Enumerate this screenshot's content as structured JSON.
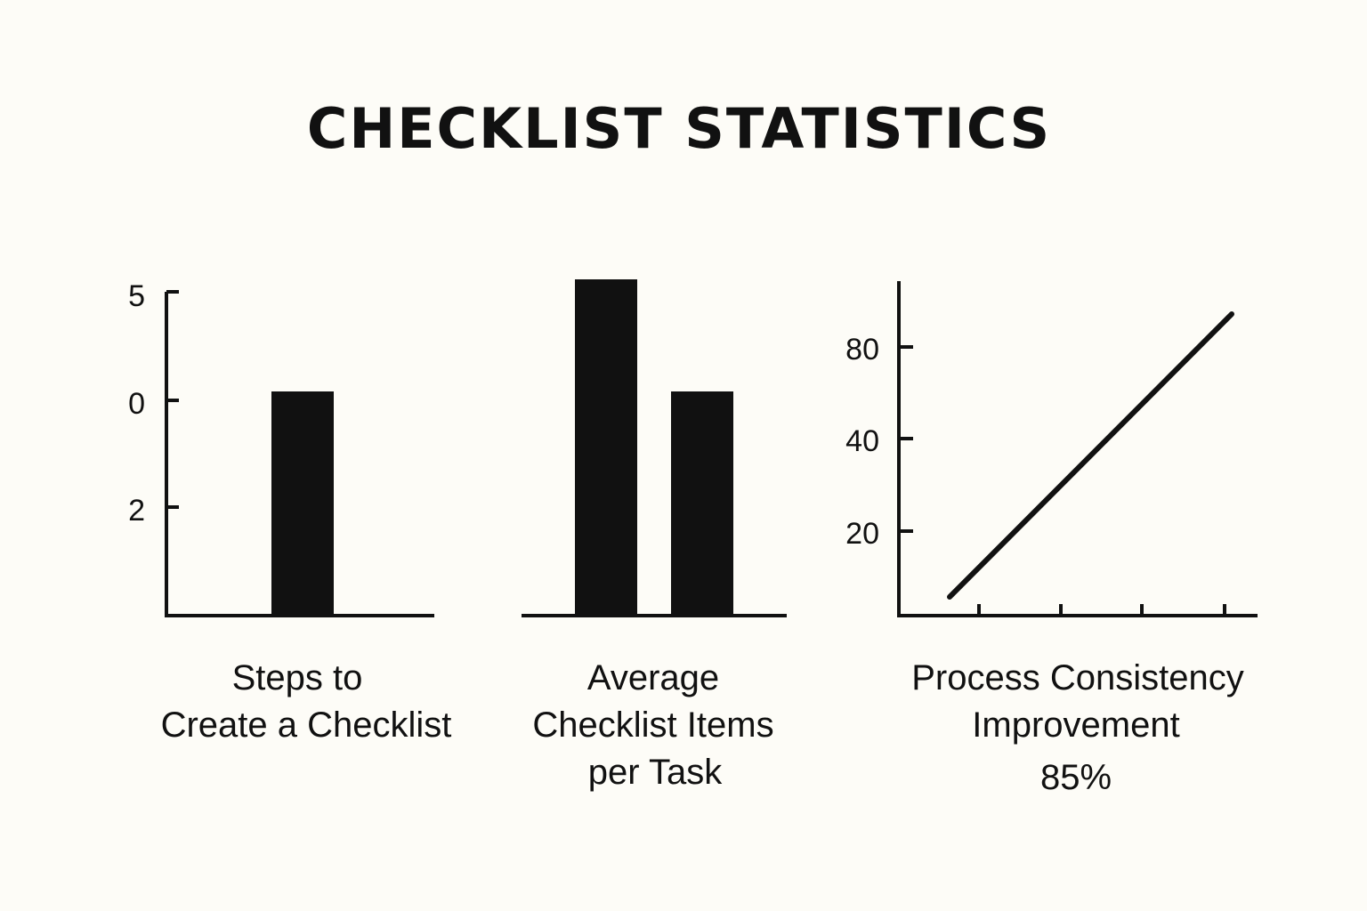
{
  "title": "CHECKLIST STATISTICS",
  "colors": {
    "background": "#fdfcf7",
    "ink": "#111111"
  },
  "chart_data": [
    {
      "type": "bar",
      "caption": [
        "Steps to",
        "Create a Checklist"
      ],
      "y_ticks": [
        "5",
        "0",
        "2"
      ],
      "categories": [
        ""
      ],
      "values": [
        2
      ],
      "ylim": [
        0,
        3
      ],
      "grid": false
    },
    {
      "type": "bar",
      "caption": [
        "Average",
        "Checklist Items",
        "per Task"
      ],
      "y_ticks": [],
      "categories": [
        "",
        ""
      ],
      "values": [
        3,
        2
      ],
      "ylim": [
        0,
        3
      ],
      "grid": false
    },
    {
      "type": "line",
      "caption": [
        "Process Consistency",
        "Improvement",
        "85%"
      ],
      "y_ticks": [
        "80",
        "40",
        "20"
      ],
      "x_tick_count": 4,
      "series": [
        {
          "x": [
            0,
            4
          ],
          "y": [
            0,
            85
          ]
        }
      ],
      "grid": false
    }
  ]
}
